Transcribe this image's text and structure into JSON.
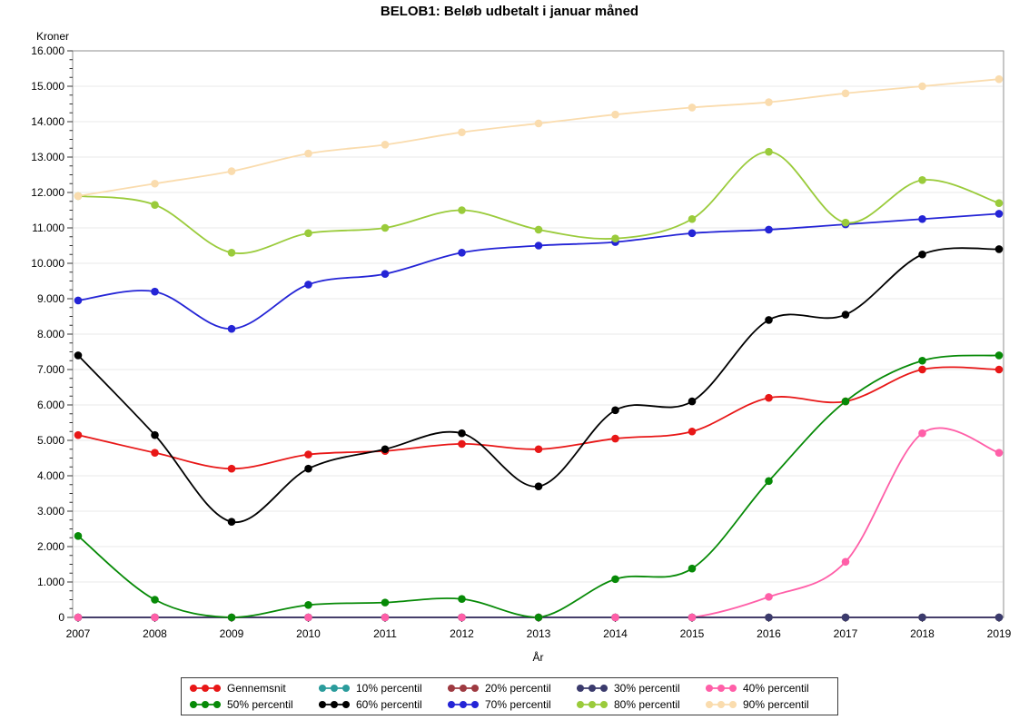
{
  "title": "BELOB1: Beløb udbetalt i januar måned",
  "chart_data": {
    "type": "line",
    "x": [
      2007,
      2008,
      2009,
      2010,
      2011,
      2012,
      2013,
      2014,
      2015,
      2016,
      2017,
      2018,
      2019
    ],
    "x_labels": [
      "2007",
      "2008",
      "2009",
      "2010",
      "2011",
      "2012",
      "2013",
      "2014",
      "2015",
      "2016",
      "2017",
      "2018",
      "2019"
    ],
    "xlabel": "År",
    "ylabel": "Kroner",
    "ylim": [
      0,
      16000
    ],
    "y_major_tick_step": 1000,
    "y_minor_ticks_per_major": 3,
    "y_tick_labels": [
      "0",
      "1.000",
      "2.000",
      "3.000",
      "4.000",
      "5.000",
      "6.000",
      "7.000",
      "8.000",
      "9.000",
      "10.000",
      "11.000",
      "12.000",
      "13.000",
      "14.000",
      "15.000",
      "16.000"
    ],
    "grid": "horizontal-major",
    "legend_position": "bottom",
    "marker": "filled-circle",
    "smooth": true,
    "series": [
      {
        "name": "Gennemsnit",
        "color": "#e81717",
        "values": [
          5150,
          4650,
          4200,
          4600,
          4700,
          4900,
          4750,
          5050,
          5250,
          6200,
          6100,
          7000,
          7000
        ]
      },
      {
        "name": "10% percentil",
        "color": "#2b9c9c",
        "values": [
          0,
          0,
          0,
          0,
          0,
          0,
          0,
          0,
          0,
          0,
          0,
          0,
          0
        ]
      },
      {
        "name": "20% percentil",
        "color": "#9e3a41",
        "values": [
          0,
          0,
          0,
          0,
          0,
          0,
          0,
          0,
          0,
          0,
          0,
          0,
          0
        ]
      },
      {
        "name": "30% percentil",
        "color": "#3b3b6d",
        "values": [
          0,
          0,
          0,
          0,
          0,
          0,
          0,
          0,
          0,
          0,
          0,
          0,
          0
        ]
      },
      {
        "name": "40% percentil",
        "color": "#ff5fa8",
        "values": [
          0,
          0,
          0,
          0,
          0,
          0,
          0,
          0,
          0,
          580,
          1570,
          5200,
          4650
        ]
      },
      {
        "name": "50% percentil",
        "color": "#078a07",
        "values": [
          2300,
          500,
          0,
          350,
          420,
          520,
          0,
          1080,
          1380,
          3850,
          6100,
          7250,
          7400
        ]
      },
      {
        "name": "60% percentil",
        "color": "#000000",
        "values": [
          7400,
          5150,
          2700,
          4200,
          4750,
          5200,
          3700,
          5850,
          6100,
          8400,
          8550,
          10250,
          10400
        ]
      },
      {
        "name": "70% percentil",
        "color": "#2424d6",
        "values": [
          8950,
          9200,
          8150,
          9400,
          9700,
          10300,
          10500,
          10600,
          10850,
          10950,
          11100,
          11250,
          11400
        ]
      },
      {
        "name": "80% percentil",
        "color": "#9acb3b",
        "values": [
          11900,
          11650,
          10300,
          10850,
          11000,
          11500,
          10950,
          10700,
          11250,
          13150,
          11150,
          12350,
          11700
        ]
      },
      {
        "name": "90% percentil",
        "color": "#fadcae",
        "values": [
          11900,
          12250,
          12600,
          13100,
          13350,
          13700,
          13950,
          14200,
          14400,
          14550,
          14800,
          15000,
          15200
        ]
      }
    ],
    "line_draw_order": [
      "40% percentil",
      "10% percentil",
      "20% percentil",
      "30% percentil",
      "Gennemsnit",
      "50% percentil",
      "60% percentil",
      "70% percentil",
      "80% percentil",
      "90% percentil"
    ],
    "marker_draw_order": [
      "10% percentil",
      "20% percentil",
      "30% percentil",
      "40% percentil",
      "Gennemsnit",
      "50% percentil",
      "60% percentil",
      "70% percentil",
      "80% percentil",
      "90% percentil"
    ]
  },
  "legend": {
    "items": [
      "Gennemsnit",
      "10% percentil",
      "20% percentil",
      "30% percentil",
      "40% percentil",
      "50% percentil",
      "60% percentil",
      "70% percentil",
      "80% percentil",
      "90% percentil"
    ]
  }
}
